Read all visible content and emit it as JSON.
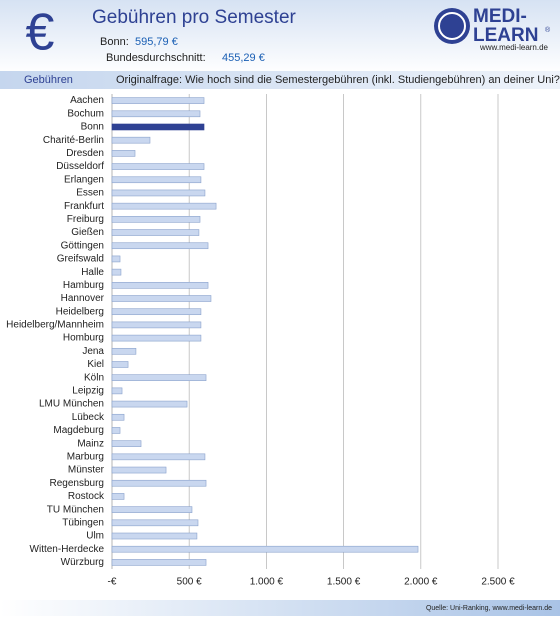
{
  "chart_data": {
    "type": "hbar",
    "icon": "€",
    "title": "Gebühren pro Semester",
    "notes": [
      {
        "label": "Bonn:",
        "value": "595,79 €"
      },
      {
        "label": "Bundesdurchschnitt:",
        "value": "455,29 €"
      }
    ],
    "logo": {
      "line1": "MEDI-",
      "line2": "LEARN",
      "mark": "®",
      "url": "www.medi-learn.de"
    },
    "y_label": "Gebühren",
    "subtitle": "Originalfrage: Wie hoch sind die Semestergebühren (inkl. Studiengebühren) an deiner Uni?",
    "source": "Quelle: Uni-Ranking, www.medi-learn.de",
    "categories": [
      "Aachen",
      "Bochum",
      "Bonn",
      "Charité-Berlin",
      "Dresden",
      "Düsseldorf",
      "Erlangen",
      "Essen",
      "Frankfurt",
      "Freiburg",
      "Gießen",
      "Göttingen",
      "Greifswald",
      "Halle",
      "Hamburg",
      "Hannover",
      "Heidelberg",
      "Heidelberg/Mannheim",
      "Homburg",
      "Jena",
      "Kiel",
      "Köln",
      "Leipzig",
      "LMU München",
      "Lübeck",
      "Magdeburg",
      "Mainz",
      "Marburg",
      "Münster",
      "Regensburg",
      "Rostock",
      "TU München",
      "Tübingen",
      "Ulm",
      "Witten-Herdecke",
      "Würzburg"
    ],
    "values": [
      596,
      570,
      596,
      246,
      149,
      596,
      576,
      602,
      674,
      570,
      563,
      622,
      52,
      58,
      622,
      641,
      576,
      576,
      576,
      155,
      104,
      609,
      65,
      486,
      78,
      52,
      188,
      602,
      350,
      609,
      78,
      518,
      557,
      550,
      1982,
      609
    ],
    "color": "#c9d7ef",
    "highlight": {
      "category": "Bonn",
      "color": "#2e4193"
    },
    "xlim": [
      0,
      2500
    ],
    "xticks": [
      {
        "value": 0,
        "label": "-€"
      },
      {
        "value": 500,
        "label": "500 €"
      },
      {
        "value": 1000,
        "label": "1.000 €"
      },
      {
        "value": 1500,
        "label": "1.500 €"
      },
      {
        "value": 2000,
        "label": "2.000 €"
      },
      {
        "value": 2500,
        "label": "2.500 €"
      }
    ],
    "grid": true
  }
}
